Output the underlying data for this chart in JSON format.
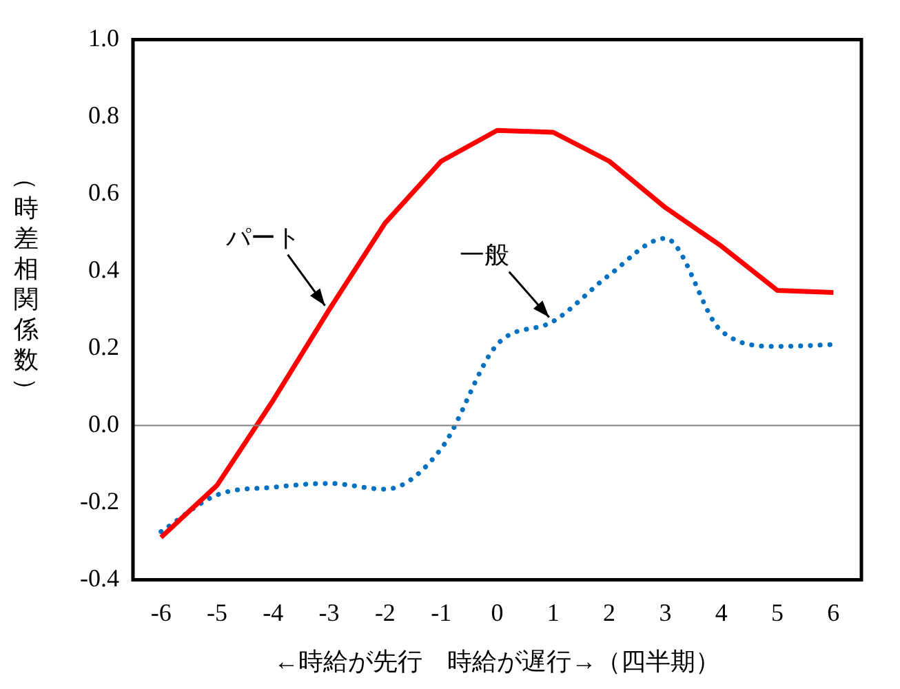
{
  "chart_data": {
    "type": "line",
    "ylabel": "（時差相関係数）",
    "xlabel": "←時給が先行　時給が遅行→（四半期）",
    "categories": [
      "-6",
      "-5",
      "-4",
      "-3",
      "-2",
      "-1",
      "0",
      "1",
      "2",
      "3",
      "4",
      "5",
      "6"
    ],
    "series": [
      {
        "name": "パート",
        "color": "#ff0000",
        "line_style": "solid",
        "values": [
          -0.29,
          -0.155,
          0.065,
          0.3,
          0.525,
          0.685,
          0.765,
          0.76,
          0.685,
          0.565,
          0.465,
          0.35,
          0.345
        ]
      },
      {
        "name": "一般",
        "color": "#0070c0",
        "line_style": "dotted",
        "values": [
          -0.275,
          -0.18,
          -0.16,
          -0.15,
          -0.165,
          -0.06,
          0.21,
          0.27,
          0.39,
          0.485,
          0.245,
          0.205,
          0.21
        ]
      }
    ],
    "ylim": [
      -0.4,
      1.0
    ],
    "yticks": [
      {
        "value": -0.4,
        "label": "-0.4"
      },
      {
        "value": -0.2,
        "label": "-0.2"
      },
      {
        "value": 0,
        "label": "0.0"
      },
      {
        "value": 0.2,
        "label": "0.2"
      },
      {
        "value": 0.4,
        "label": "0.4"
      },
      {
        "value": 0.6,
        "label": "0.6"
      },
      {
        "value": 0.8,
        "label": "0.8"
      },
      {
        "value": 1,
        "label": "1.0"
      }
    ],
    "ref_lines": [
      {
        "axis": "y",
        "value": 0,
        "color": "#808080"
      }
    ],
    "grid": false,
    "legend": false,
    "marker": "none"
  }
}
